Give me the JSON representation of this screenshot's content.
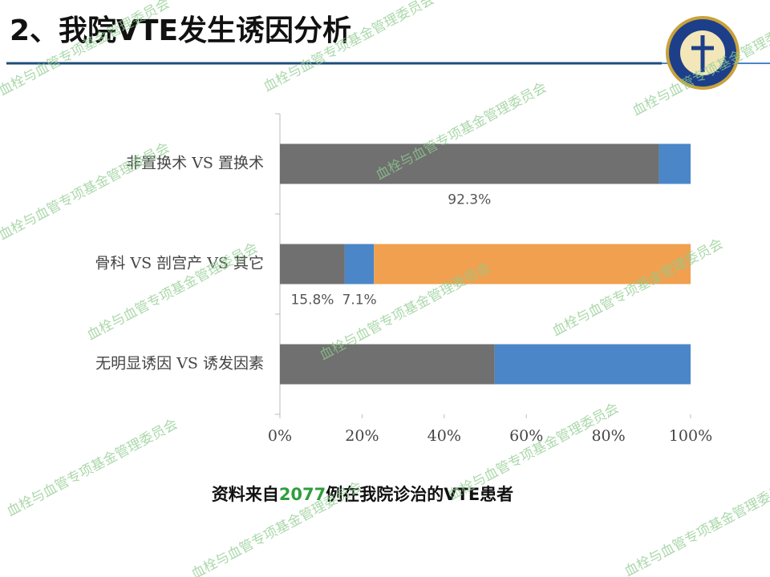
{
  "title": "2、我院VTE发生诱因分析",
  "watermark": "血栓与血管专项基金管理委员会",
  "caption": {
    "prefix": "资料来自",
    "number": "2077",
    "suffix": "例在我院诊治的VTE患者"
  },
  "chart_data": {
    "type": "stacked-barh",
    "categories": [
      "非置换术 VS 置换术",
      "骨科 VS 剖宫产 VS 其它",
      "无明显诱因 VS 诱发因素"
    ],
    "series": [
      {
        "color": "#707070",
        "values": [
          92.3,
          15.8,
          52.3
        ],
        "value_labels": [
          "92.3%",
          "15.8%",
          null
        ]
      },
      {
        "color": "#4a86c8",
        "values": [
          7.7,
          7.1,
          47.7
        ],
        "value_labels": [
          null,
          "7.1%",
          null
        ]
      },
      {
        "color": "#f0a04e",
        "values": [
          null,
          77.1,
          null
        ]
      }
    ],
    "xlim": [
      0,
      100
    ],
    "xticks": [
      {
        "value": 0,
        "label": "0%"
      },
      {
        "value": 20,
        "label": "20%"
      },
      {
        "value": 40,
        "label": "40%"
      },
      {
        "value": 60,
        "label": "60%"
      },
      {
        "value": 80,
        "label": "80%"
      },
      {
        "value": 100,
        "label": "100%"
      }
    ],
    "grid": false
  }
}
